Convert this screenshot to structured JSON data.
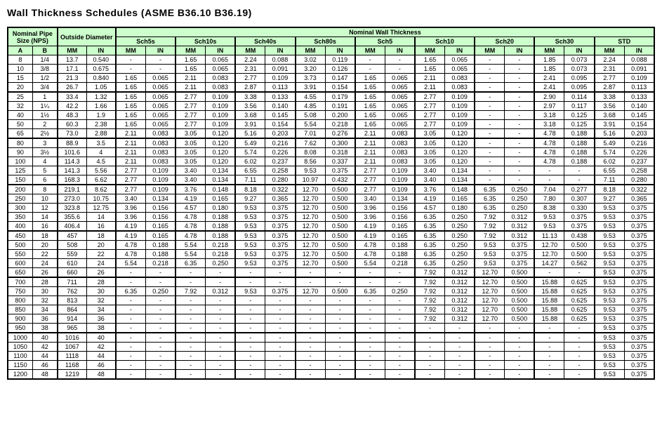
{
  "title": "Wall Thickness Schedules (ASME B36.10 B36.19)",
  "colors": {
    "header_bg": "#ccffcc",
    "border": "#000000",
    "text": "#000000",
    "bg": "#ffffff"
  },
  "header": {
    "nps": "Nominal Pipe Size (NPS)",
    "od": "Outside Diameter",
    "nwt": "Nominal Wall Thickness",
    "a": "A",
    "b": "B",
    "mm": "MM",
    "in": "IN",
    "schedules": [
      "Sch5s",
      "Sch10s",
      "Sch40s",
      "Sch80s",
      "Sch5",
      "Sch10",
      "Sch20",
      "Sch30",
      "STD"
    ]
  },
  "groups": [
    {
      "rows": [
        {
          "a": "8",
          "b": "1/4",
          "od_mm": "13.7",
          "od_in": "0.540",
          "cells": [
            "-",
            "-",
            "1.65",
            "0.065",
            "2.24",
            "0.088",
            "3.02",
            "0.119",
            "-",
            "-",
            "1.65",
            "0.065",
            "-",
            "-",
            "1.85",
            "0.073",
            "2.24",
            "0.088"
          ]
        },
        {
          "a": "10",
          "b": "3/8",
          "od_mm": "17.1",
          "od_in": "0.675",
          "cells": [
            "-",
            "-",
            "1.65",
            "0.065",
            "2.31",
            "0.091",
            "3.20",
            "0.126",
            "-",
            "-",
            "1.65",
            "0.065",
            "-",
            "-",
            "1.85",
            "0.073",
            "2.31",
            "0.091"
          ]
        },
        {
          "a": "15",
          "b": "1/2",
          "od_mm": "21.3",
          "od_in": "0.840",
          "cells": [
            "1.65",
            "0.065",
            "2.11",
            "0.083",
            "2.77",
            "0.109",
            "3.73",
            "0.147",
            "1.65",
            "0.065",
            "2.11",
            "0.083",
            "-",
            "-",
            "2.41",
            "0.095",
            "2.77",
            "0.109"
          ]
        },
        {
          "a": "20",
          "b": "3/4",
          "od_mm": "26.7",
          "od_in": "1.05",
          "cells": [
            "1.65",
            "0.065",
            "2.11",
            "0.083",
            "2.87",
            "0.113",
            "3.91",
            "0.154",
            "1.65",
            "0.065",
            "2.11",
            "0.083",
            "-",
            "-",
            "2.41",
            "0.095",
            "2.87",
            "0.113"
          ]
        }
      ]
    },
    {
      "rows": [
        {
          "a": "25",
          "b": "1",
          "od_mm": "33.4",
          "od_in": "1.32",
          "cells": [
            "1.65",
            "0.065",
            "2.77",
            "0.109",
            "3.38",
            "0.133",
            "4.55",
            "0.179",
            "1.65",
            "0.065",
            "2.77",
            "0.109",
            "-",
            "-",
            "2.90",
            "0.114",
            "3.38",
            "0.133"
          ]
        },
        {
          "a": "32",
          "b": "1¼",
          "od_mm": "42.2",
          "od_in": "1.66",
          "cells": [
            "1.65",
            "0.065",
            "2.77",
            "0.109",
            "3.56",
            "0.140",
            "4.85",
            "0.191",
            "1.65",
            "0.065",
            "2.77",
            "0.109",
            "-",
            "-",
            "2.97",
            "0.117",
            "3.56",
            "0.140"
          ]
        },
        {
          "a": "40",
          "b": "1½",
          "od_mm": "48.3",
          "od_in": "1.9",
          "cells": [
            "1.65",
            "0.065",
            "2.77",
            "0.109",
            "3.68",
            "0.145",
            "5.08",
            "0.200",
            "1.65",
            "0.065",
            "2.77",
            "0.109",
            "-",
            "-",
            "3.18",
            "0.125",
            "3.68",
            "0.145"
          ]
        },
        {
          "a": "50",
          "b": "2",
          "od_mm": "60.3",
          "od_in": "2.38",
          "cells": [
            "1.65",
            "0.065",
            "2.77",
            "0.109",
            "3.91",
            "0.154",
            "5.54",
            "0.218",
            "1.65",
            "0.065",
            "2.77",
            "0.109",
            "-",
            "-",
            "3.18",
            "0.125",
            "3.91",
            "0.154"
          ]
        },
        {
          "a": "65",
          "b": "2½",
          "od_mm": "73.0",
          "od_in": "2.88",
          "cells": [
            "2.11",
            "0.083",
            "3.05",
            "0.120",
            "5.16",
            "0.203",
            "7.01",
            "0.276",
            "2.11",
            "0.083",
            "3.05",
            "0.120",
            "-",
            "-",
            "4.78",
            "0.188",
            "5.16",
            "0.203"
          ]
        }
      ]
    },
    {
      "rows": [
        {
          "a": "80",
          "b": "3",
          "od_mm": "88.9",
          "od_in": "3.5",
          "cells": [
            "2.11",
            "0.083",
            "3.05",
            "0.120",
            "5.49",
            "0.216",
            "7.62",
            "0.300",
            "2.11",
            "0.083",
            "3.05",
            "0.120",
            "-",
            "-",
            "4.78",
            "0.188",
            "5.49",
            "0.216"
          ]
        },
        {
          "a": "90",
          "b": "3½",
          "od_mm": "101.6",
          "od_in": "4",
          "cells": [
            "2.11",
            "0.083",
            "3.05",
            "0.120",
            "5.74",
            "0.226",
            "8.08",
            "0.318",
            "2.11",
            "0.083",
            "3.05",
            "0.120",
            "-",
            "-",
            "4.78",
            "0.188",
            "5.74",
            "0.226"
          ]
        },
        {
          "a": "100",
          "b": "4",
          "od_mm": "114.3",
          "od_in": "4.5",
          "cells": [
            "2.11",
            "0.083",
            "3.05",
            "0.120",
            "6.02",
            "0.237",
            "8.56",
            "0.337",
            "2.11",
            "0.083",
            "3.05",
            "0.120",
            "-",
            "-",
            "4.78",
            "0.188",
            "6.02",
            "0.237"
          ]
        },
        {
          "a": "125",
          "b": "5",
          "od_mm": "141.3",
          "od_in": "5.56",
          "cells": [
            "2.77",
            "0.109",
            "3.40",
            "0.134",
            "6.55",
            "0.258",
            "9.53",
            "0.375",
            "2.77",
            "0.109",
            "3.40",
            "0.134",
            "-",
            "-",
            "-",
            "-",
            "6.55",
            "0.258"
          ]
        },
        {
          "a": "150",
          "b": "6",
          "od_mm": "168.3",
          "od_in": "6.62",
          "cells": [
            "2.77",
            "0.109",
            "3.40",
            "0.134",
            "7.11",
            "0.280",
            "10.97",
            "0.432",
            "2.77",
            "0.109",
            "3.40",
            "0.134",
            "-",
            "-",
            "-",
            "-",
            "7.11",
            "0.280"
          ]
        }
      ]
    },
    {
      "rows": [
        {
          "a": "200",
          "b": "8",
          "od_mm": "219.1",
          "od_in": "8.62",
          "cells": [
            "2.77",
            "0.109",
            "3.76",
            "0.148",
            "8.18",
            "0.322",
            "12.70",
            "0.500",
            "2.77",
            "0.109",
            "3.76",
            "0.148",
            "6.35",
            "0.250",
            "7.04",
            "0.277",
            "8.18",
            "0.322"
          ]
        },
        {
          "a": "250",
          "b": "10",
          "od_mm": "273.0",
          "od_in": "10.75",
          "cells": [
            "3.40",
            "0.134",
            "4.19",
            "0.165",
            "9.27",
            "0.365",
            "12.70",
            "0.500",
            "3.40",
            "0.134",
            "4.19",
            "0.165",
            "6.35",
            "0.250",
            "7.80",
            "0.307",
            "9.27",
            "0.365"
          ]
        },
        {
          "a": "300",
          "b": "12",
          "od_mm": "323.8",
          "od_in": "12.75",
          "cells": [
            "3.96",
            "0.156",
            "4.57",
            "0.180",
            "9.53",
            "0.375",
            "12.70",
            "0.500",
            "3.96",
            "0.156",
            "4.57",
            "0.180",
            "6.35",
            "0.250",
            "8.38",
            "0.330",
            "9.53",
            "0.375"
          ]
        },
        {
          "a": "350",
          "b": "14",
          "od_mm": "355.6",
          "od_in": "14",
          "cells": [
            "3.96",
            "0.156",
            "4.78",
            "0.188",
            "9.53",
            "0.375",
            "12.70",
            "0.500",
            "3.96",
            "0.156",
            "6.35",
            "0.250",
            "7.92",
            "0.312",
            "9.53",
            "0.375",
            "9.53",
            "0.375"
          ]
        },
        {
          "a": "400",
          "b": "16",
          "od_mm": "406.4",
          "od_in": "16",
          "cells": [
            "4.19",
            "0.165",
            "4.78",
            "0.188",
            "9.53",
            "0.375",
            "12.70",
            "0.500",
            "4.19",
            "0.165",
            "6.35",
            "0.250",
            "7.92",
            "0.312",
            "9.53",
            "0.375",
            "9.53",
            "0.375"
          ]
        }
      ]
    },
    {
      "rows": [
        {
          "a": "450",
          "b": "18",
          "od_mm": "457",
          "od_in": "18",
          "cells": [
            "4.19",
            "0.165",
            "4.78",
            "0.188",
            "9.53",
            "0.375",
            "12.70",
            "0.500",
            "4.19",
            "0.165",
            "6.35",
            "0.250",
            "7.92",
            "0.312",
            "11.13",
            "0.438",
            "9.53",
            "0.375"
          ]
        },
        {
          "a": "500",
          "b": "20",
          "od_mm": "508",
          "od_in": "20",
          "cells": [
            "4.78",
            "0.188",
            "5.54",
            "0.218",
            "9.53",
            "0.375",
            "12.70",
            "0.500",
            "4.78",
            "0.188",
            "6.35",
            "0.250",
            "9.53",
            "0.375",
            "12.70",
            "0.500",
            "9.53",
            "0.375"
          ]
        },
        {
          "a": "550",
          "b": "22",
          "od_mm": "559",
          "od_in": "22",
          "cells": [
            "4.78",
            "0.188",
            "5.54",
            "0.218",
            "9.53",
            "0.375",
            "12.70",
            "0.500",
            "4.78",
            "0.188",
            "6.35",
            "0.250",
            "9.53",
            "0.375",
            "12.70",
            "0.500",
            "9.53",
            "0.375"
          ]
        },
        {
          "a": "600",
          "b": "24",
          "od_mm": "610",
          "od_in": "24",
          "cells": [
            "5.54",
            "0.218",
            "6.35",
            "0.250",
            "9.53",
            "0.375",
            "12.70",
            "0.500",
            "5.54",
            "0.218",
            "6.35",
            "0.250",
            "9.53",
            "0.375",
            "14.27",
            "0.562",
            "9.53",
            "0.375"
          ]
        },
        {
          "a": "650",
          "b": "26",
          "od_mm": "660",
          "od_in": "26",
          "cells": [
            "-",
            "-",
            "-",
            "-",
            "-",
            "-",
            "-",
            "-",
            "-",
            "-",
            "7.92",
            "0.312",
            "12.70",
            "0.500",
            "-",
            "-",
            "9.53",
            "0.375"
          ]
        }
      ]
    },
    {
      "rows": [
        {
          "a": "700",
          "b": "28",
          "od_mm": "711",
          "od_in": "28",
          "cells": [
            "-",
            "-",
            "-",
            "-",
            "-",
            "-",
            "-",
            "-",
            "-",
            "-",
            "7.92",
            "0.312",
            "12.70",
            "0.500",
            "15.88",
            "0.625",
            "9.53",
            "0.375"
          ]
        },
        {
          "a": "750",
          "b": "30",
          "od_mm": "762",
          "od_in": "30",
          "cells": [
            "6.35",
            "0.250",
            "7.92",
            "0.312",
            "9.53",
            "0.375",
            "12.70",
            "0.500",
            "6.35",
            "0.250",
            "7.92",
            "0.312",
            "12.70",
            "0.500",
            "15.88",
            "0.625",
            "9.53",
            "0.375"
          ]
        },
        {
          "a": "800",
          "b": "32",
          "od_mm": "813",
          "od_in": "32",
          "cells": [
            "-",
            "-",
            "-",
            "-",
            "-",
            "-",
            "-",
            "-",
            "-",
            "-",
            "7.92",
            "0.312",
            "12.70",
            "0.500",
            "15.88",
            "0.625",
            "9.53",
            "0.375"
          ]
        },
        {
          "a": "850",
          "b": "34",
          "od_mm": "864",
          "od_in": "34",
          "cells": [
            "-",
            "-",
            "-",
            "-",
            "-",
            "-",
            "-",
            "-",
            "-",
            "-",
            "7.92",
            "0.312",
            "12.70",
            "0.500",
            "15.88",
            "0.625",
            "9.53",
            "0.375"
          ]
        },
        {
          "a": "900",
          "b": "36",
          "od_mm": "914",
          "od_in": "36",
          "cells": [
            "-",
            "-",
            "-",
            "-",
            "-",
            "-",
            "-",
            "-",
            "-",
            "-",
            "7.92",
            "0.312",
            "12.70",
            "0.500",
            "15.88",
            "0.625",
            "9.53",
            "0.375"
          ]
        },
        {
          "a": "950",
          "b": "38",
          "od_mm": "965",
          "od_in": "38",
          "cells": [
            "-",
            "-",
            "-",
            "-",
            "-",
            "-",
            "-",
            "-",
            "-",
            "-",
            "-",
            "-",
            "-",
            "-",
            "-",
            "-",
            "9.53",
            "0.375"
          ]
        }
      ]
    },
    {
      "rows": [
        {
          "a": "1000",
          "b": "40",
          "od_mm": "1016",
          "od_in": "40",
          "cells": [
            "-",
            "-",
            "-",
            "-",
            "-",
            "-",
            "-",
            "-",
            "-",
            "-",
            "-",
            "-",
            "-",
            "-",
            "-",
            "-",
            "9.53",
            "0.375"
          ]
        },
        {
          "a": "1050",
          "b": "42",
          "od_mm": "1067",
          "od_in": "42",
          "cells": [
            "-",
            "-",
            "-",
            "-",
            "-",
            "-",
            "-",
            "-",
            "-",
            "-",
            "-",
            "-",
            "-",
            "-",
            "-",
            "-",
            "9.53",
            "0.375"
          ]
        },
        {
          "a": "1100",
          "b": "44",
          "od_mm": "1118",
          "od_in": "44",
          "cells": [
            "-",
            "-",
            "-",
            "-",
            "-",
            "-",
            "-",
            "-",
            "-",
            "-",
            "-",
            "-",
            "-",
            "-",
            "-",
            "-",
            "9.53",
            "0.375"
          ]
        },
        {
          "a": "1150",
          "b": "46",
          "od_mm": "1168",
          "od_in": "46",
          "cells": [
            "-",
            "-",
            "-",
            "-",
            "-",
            "-",
            "-",
            "-",
            "-",
            "-",
            "-",
            "-",
            "-",
            "-",
            "-",
            "-",
            "9.53",
            "0.375"
          ]
        },
        {
          "a": "1200",
          "b": "48",
          "od_mm": "1219",
          "od_in": "48",
          "cells": [
            "-",
            "-",
            "-",
            "-",
            "-",
            "-",
            "-",
            "-",
            "-",
            "-",
            "-",
            "-",
            "-",
            "-",
            "-",
            "-",
            "9.53",
            "0.375"
          ]
        }
      ]
    }
  ]
}
